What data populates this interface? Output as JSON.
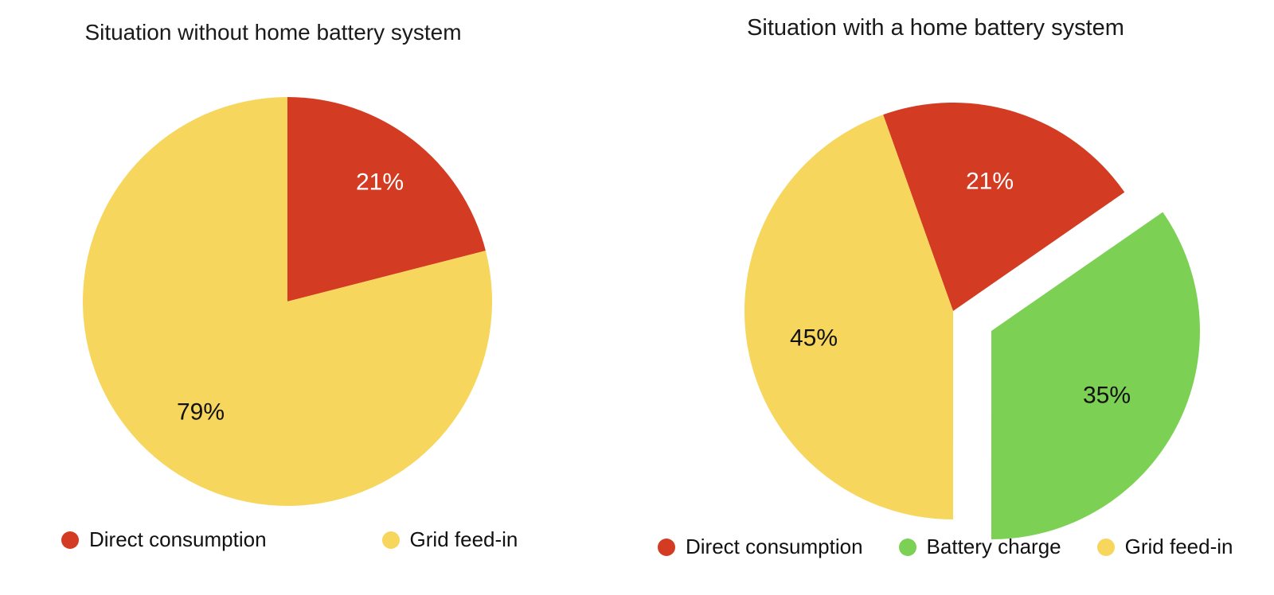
{
  "chart_data": [
    {
      "type": "pie",
      "title": "Situation without home battery system",
      "slices": [
        {
          "label": "Direct consumption",
          "value": 21,
          "display": "21%",
          "color": "#d43b23",
          "label_color": "#ffffff"
        },
        {
          "label": "Grid feed-in",
          "value": 79,
          "display": "79%",
          "color": "#f6d65c",
          "label_color": "#111111"
        }
      ],
      "legend": [
        "Direct consumption",
        "Grid feed-in"
      ],
      "legend_position": "bottom",
      "start_angle_deg": 0,
      "rotation": "clockwise",
      "exploded_slice": null
    },
    {
      "type": "pie",
      "title": "Situation with a home battery system",
      "slices": [
        {
          "label": "Direct consumption",
          "value": 21,
          "display": "21%",
          "color": "#d43b23",
          "label_color": "#ffffff"
        },
        {
          "label": "Battery charge",
          "value": 35,
          "display": "35%",
          "color": "#7cd154",
          "label_color": "#111111"
        },
        {
          "label": "Grid feed-in",
          "value": 45,
          "display": "45%",
          "color": "#f6d65c",
          "label_color": "#111111"
        }
      ],
      "legend": [
        "Direct consumption",
        "Battery charge",
        "Grid feed-in"
      ],
      "legend_position": "bottom",
      "start_angle_deg": -19.6,
      "rotation": "clockwise",
      "exploded_slice": "Battery charge"
    }
  ]
}
